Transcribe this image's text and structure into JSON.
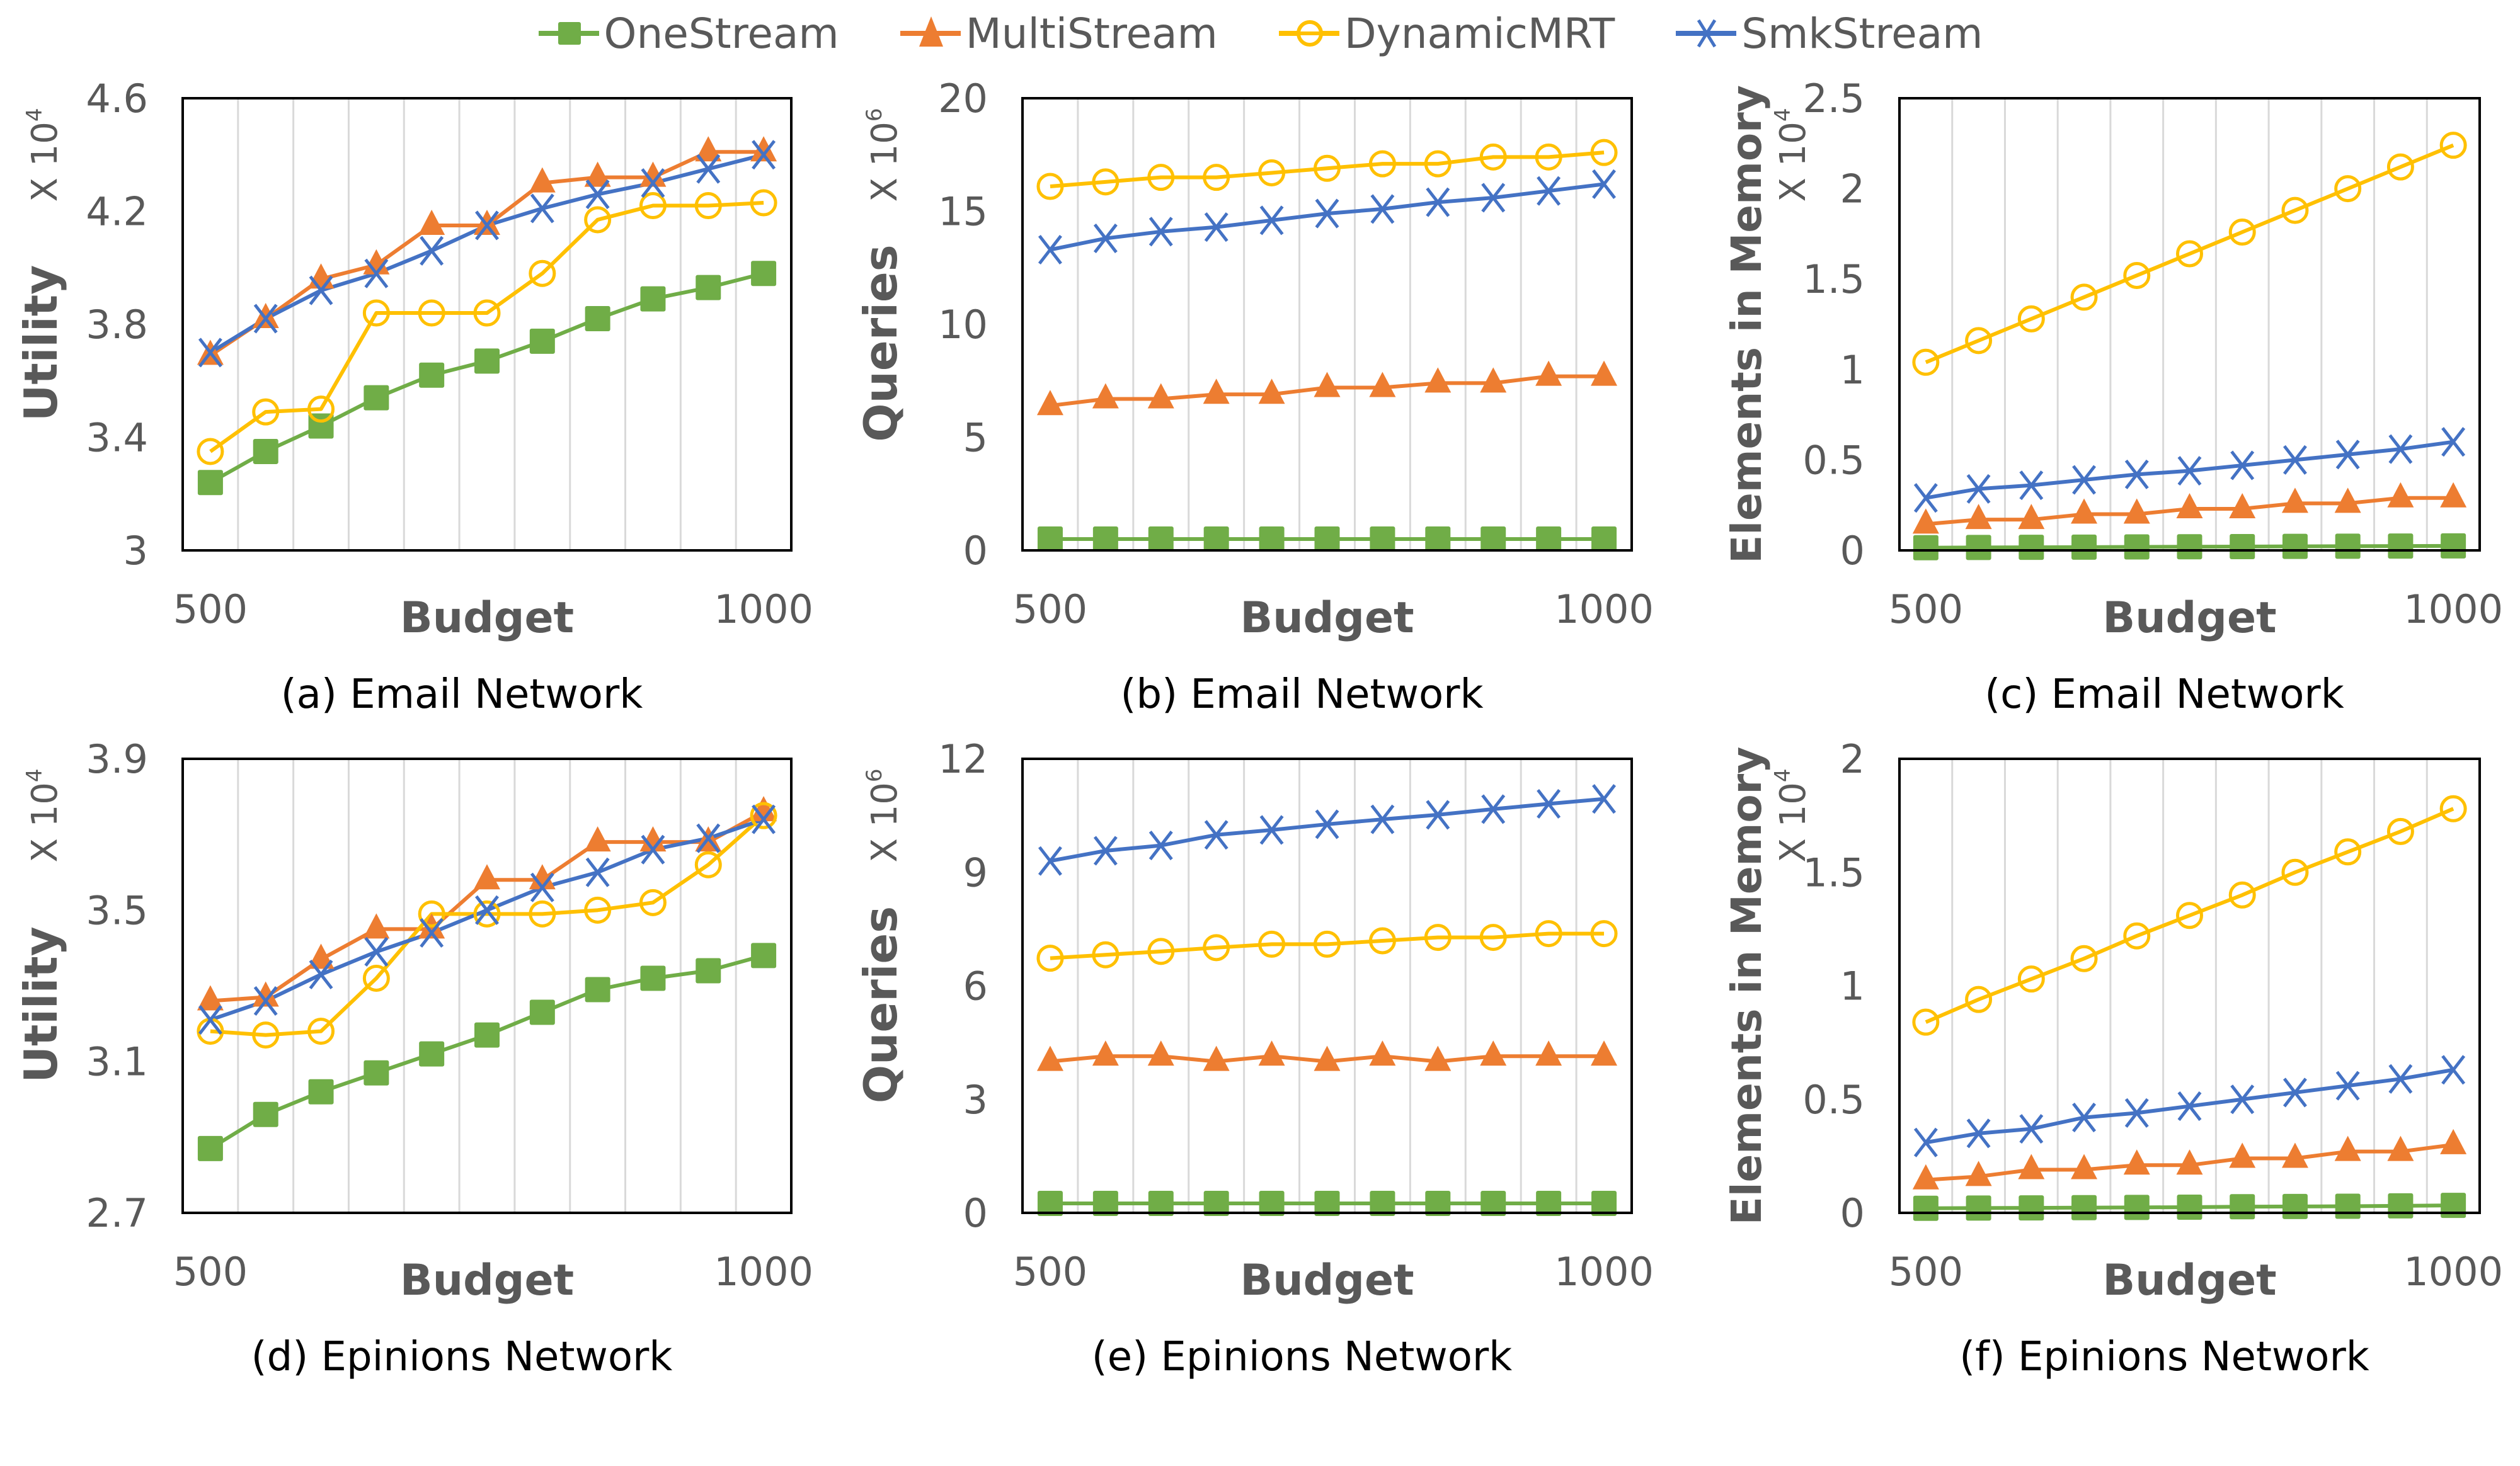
{
  "legend": [
    {
      "name": "OneStream",
      "color": "#70AD47",
      "marker": "square"
    },
    {
      "name": "MultiStream",
      "color": "#ED7D31",
      "marker": "triangle"
    },
    {
      "name": "DynamicMRT",
      "color": "#FFC000",
      "marker": "circle"
    },
    {
      "name": "SmkStream",
      "color": "#4472C4",
      "marker": "x"
    }
  ],
  "colors": {
    "axis": "#000000",
    "grid": "#D9D9D9",
    "tick_text": "#595959",
    "caption": "#000000"
  },
  "chart_data": [
    {
      "id": "a",
      "type": "line",
      "caption": "(a) Email Network",
      "xlabel": "Budget",
      "ylabel": "Utility",
      "multiplier": "X 10",
      "multiplier_exp": "4",
      "x": [
        500,
        550,
        600,
        650,
        700,
        750,
        800,
        850,
        900,
        950,
        1000
      ],
      "x_tick_labels": [
        "500",
        "1000"
      ],
      "ylim": [
        3,
        4.6
      ],
      "yticks": [
        3,
        3.4,
        3.8,
        4.2,
        4.6
      ],
      "ytick_labels": [
        "3",
        "3.4",
        "3.8",
        "4.2",
        "4.6"
      ],
      "grid": "vertical",
      "series": [
        {
          "name": "OneStream",
          "values": [
            3.24,
            3.35,
            3.44,
            3.54,
            3.62,
            3.67,
            3.74,
            3.82,
            3.89,
            3.93,
            3.98
          ]
        },
        {
          "name": "MultiStream",
          "values": [
            3.69,
            3.82,
            3.96,
            4.01,
            4.15,
            4.15,
            4.3,
            4.32,
            4.32,
            4.41,
            4.41
          ]
        },
        {
          "name": "DynamicMRT",
          "values": [
            3.35,
            3.49,
            3.5,
            3.84,
            3.84,
            3.84,
            3.98,
            4.17,
            4.22,
            4.22,
            4.23
          ]
        },
        {
          "name": "SmkStream",
          "values": [
            3.7,
            3.82,
            3.92,
            3.98,
            4.06,
            4.15,
            4.21,
            4.26,
            4.3,
            4.35,
            4.4
          ]
        }
      ]
    },
    {
      "id": "b",
      "type": "line",
      "caption": "(b) Email Network",
      "xlabel": "Budget",
      "ylabel": "Queries",
      "multiplier": "X 10",
      "multiplier_exp": "6",
      "x": [
        500,
        550,
        600,
        650,
        700,
        750,
        800,
        850,
        900,
        950,
        1000
      ],
      "x_tick_labels": [
        "500",
        "1000"
      ],
      "ylim": [
        0,
        20
      ],
      "yticks": [
        0,
        5,
        10,
        15,
        20
      ],
      "ytick_labels": [
        "0",
        "5",
        "10",
        "15",
        "20"
      ],
      "grid": "vertical",
      "series": [
        {
          "name": "OneStream",
          "values": [
            0.5,
            0.5,
            0.5,
            0.5,
            0.5,
            0.5,
            0.5,
            0.5,
            0.5,
            0.5,
            0.5
          ]
        },
        {
          "name": "MultiStream",
          "values": [
            6.4,
            6.7,
            6.7,
            6.9,
            6.9,
            7.2,
            7.2,
            7.4,
            7.4,
            7.7,
            7.7
          ]
        },
        {
          "name": "DynamicMRT",
          "values": [
            16.1,
            16.3,
            16.5,
            16.5,
            16.7,
            16.9,
            17.1,
            17.1,
            17.4,
            17.4,
            17.6
          ]
        },
        {
          "name": "SmkStream",
          "values": [
            13.3,
            13.8,
            14.1,
            14.3,
            14.6,
            14.9,
            15.1,
            15.4,
            15.6,
            15.9,
            16.2
          ]
        }
      ]
    },
    {
      "id": "c",
      "type": "line",
      "caption": "(c) Email Network",
      "xlabel": "Budget",
      "ylabel": "Elements in Memory",
      "multiplier": "X 10",
      "multiplier_exp": "4",
      "x": [
        500,
        550,
        600,
        650,
        700,
        750,
        800,
        850,
        900,
        950,
        1000
      ],
      "x_tick_labels": [
        "500",
        "1000"
      ],
      "ylim": [
        0,
        2.5
      ],
      "yticks": [
        0,
        0.5,
        1,
        1.5,
        2,
        2.5
      ],
      "ytick_labels": [
        "0",
        "0.5",
        "1",
        "1.5",
        "2",
        "2.5"
      ],
      "grid": "vertical",
      "series": [
        {
          "name": "OneStream",
          "values": [
            0.015,
            0.016,
            0.017,
            0.018,
            0.019,
            0.02,
            0.021,
            0.022,
            0.023,
            0.024,
            0.025
          ]
        },
        {
          "name": "MultiStream",
          "values": [
            0.145,
            0.17,
            0.17,
            0.2,
            0.2,
            0.23,
            0.23,
            0.26,
            0.26,
            0.29,
            0.29
          ]
        },
        {
          "name": "DynamicMRT",
          "values": [
            1.04,
            1.16,
            1.28,
            1.4,
            1.52,
            1.64,
            1.76,
            1.88,
            2.0,
            2.12,
            2.24
          ]
        },
        {
          "name": "SmkStream",
          "values": [
            0.29,
            0.34,
            0.36,
            0.39,
            0.42,
            0.44,
            0.47,
            0.5,
            0.53,
            0.56,
            0.6
          ]
        }
      ]
    },
    {
      "id": "d",
      "type": "line",
      "caption": "(d) Epinions Network",
      "xlabel": "Budget",
      "ylabel": "Utility",
      "multiplier": "X 10",
      "multiplier_exp": "4",
      "x": [
        500,
        550,
        600,
        650,
        700,
        750,
        800,
        850,
        900,
        950,
        1000
      ],
      "x_tick_labels": [
        "500",
        "1000"
      ],
      "ylim": [
        2.7,
        3.9
      ],
      "yticks": [
        2.7,
        3.1,
        3.5,
        3.9
      ],
      "ytick_labels": [
        "2.7",
        "3.1",
        "3.5",
        "3.9"
      ],
      "grid": "vertical",
      "series": [
        {
          "name": "OneStream",
          "values": [
            2.87,
            2.96,
            3.02,
            3.07,
            3.12,
            3.17,
            3.23,
            3.29,
            3.32,
            3.34,
            3.38
          ]
        },
        {
          "name": "MultiStream",
          "values": [
            3.26,
            3.27,
            3.37,
            3.45,
            3.45,
            3.58,
            3.58,
            3.68,
            3.68,
            3.68,
            3.76
          ]
        },
        {
          "name": "DynamicMRT",
          "values": [
            3.18,
            3.17,
            3.18,
            3.32,
            3.49,
            3.49,
            3.49,
            3.5,
            3.52,
            3.62,
            3.75
          ]
        },
        {
          "name": "SmkStream",
          "values": [
            3.21,
            3.26,
            3.33,
            3.39,
            3.44,
            3.5,
            3.56,
            3.6,
            3.66,
            3.69,
            3.74
          ]
        }
      ]
    },
    {
      "id": "e",
      "type": "line",
      "caption": "(e) Epinions Network",
      "xlabel": "Budget",
      "ylabel": "Queries",
      "multiplier": "X 10",
      "multiplier_exp": "6",
      "x": [
        500,
        550,
        600,
        650,
        700,
        750,
        800,
        850,
        900,
        950,
        1000
      ],
      "x_tick_labels": [
        "500",
        "1000"
      ],
      "ylim": [
        0,
        12
      ],
      "yticks": [
        0,
        3,
        6,
        9,
        12
      ],
      "ytick_labels": [
        "0",
        "3",
        "6",
        "9",
        "12"
      ],
      "grid": "vertical",
      "series": [
        {
          "name": "OneStream",
          "values": [
            0.25,
            0.25,
            0.25,
            0.25,
            0.25,
            0.25,
            0.25,
            0.25,
            0.25,
            0.25,
            0.25
          ]
        },
        {
          "name": "MultiStream",
          "values": [
            4.0,
            4.14,
            4.14,
            4.0,
            4.14,
            4.0,
            4.14,
            4.0,
            4.14,
            4.14,
            4.14
          ]
        },
        {
          "name": "DynamicMRT",
          "values": [
            6.73,
            6.82,
            6.91,
            7.01,
            7.1,
            7.1,
            7.19,
            7.28,
            7.28,
            7.38,
            7.38
          ]
        },
        {
          "name": "SmkStream",
          "values": [
            9.3,
            9.57,
            9.71,
            9.99,
            10.12,
            10.27,
            10.4,
            10.52,
            10.67,
            10.81,
            10.94
          ]
        }
      ]
    },
    {
      "id": "f",
      "type": "line",
      "caption": "(f) Epinions Network",
      "xlabel": "Budget",
      "ylabel": "Elements in Memory",
      "multiplier": "X 10",
      "multiplier_exp": "4",
      "x": [
        500,
        550,
        600,
        650,
        700,
        750,
        800,
        850,
        900,
        950,
        1000
      ],
      "x_tick_labels": [
        "500",
        "1000"
      ],
      "ylim": [
        0,
        2
      ],
      "yticks": [
        0,
        0.5,
        1,
        1.5,
        2
      ],
      "ytick_labels": [
        "0",
        "0.5",
        "1",
        "1.5",
        "2"
      ],
      "grid": "vertical",
      "series": [
        {
          "name": "OneStream",
          "values": [
            0.02,
            0.021,
            0.022,
            0.023,
            0.024,
            0.025,
            0.027,
            0.028,
            0.029,
            0.031,
            0.033
          ]
        },
        {
          "name": "MultiStream",
          "values": [
            0.145,
            0.16,
            0.19,
            0.19,
            0.21,
            0.21,
            0.24,
            0.24,
            0.27,
            0.27,
            0.3
          ]
        },
        {
          "name": "DynamicMRT",
          "values": [
            0.84,
            0.94,
            1.03,
            1.12,
            1.22,
            1.31,
            1.4,
            1.5,
            1.59,
            1.68,
            1.78
          ]
        },
        {
          "name": "SmkStream",
          "values": [
            0.31,
            0.35,
            0.37,
            0.42,
            0.44,
            0.47,
            0.5,
            0.53,
            0.56,
            0.59,
            0.63
          ]
        }
      ]
    }
  ]
}
